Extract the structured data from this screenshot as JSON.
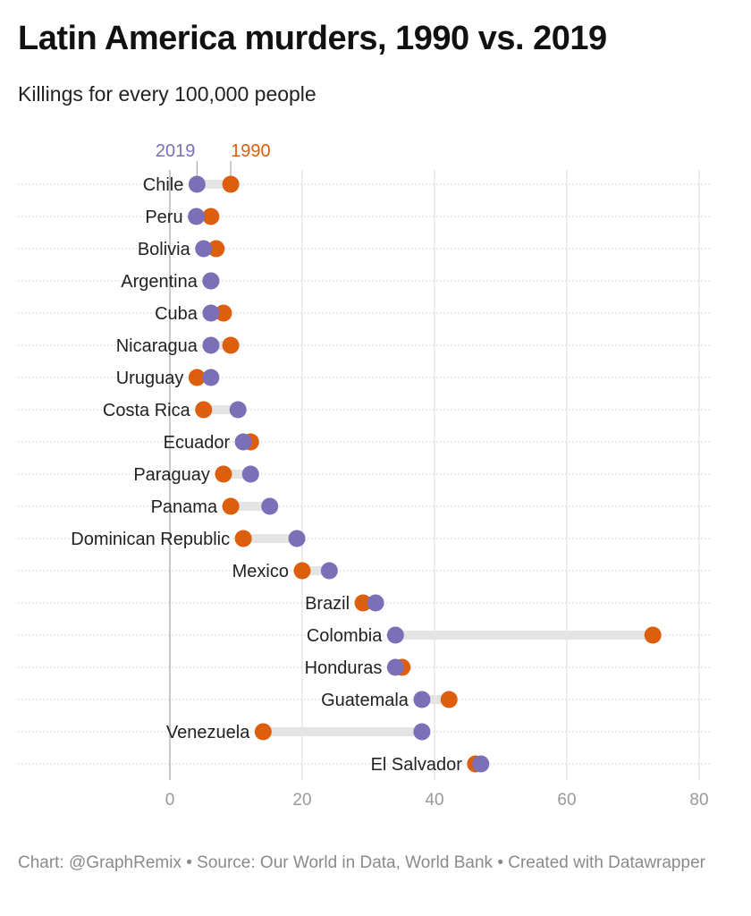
{
  "title": "Latin America murders, 1990 vs. 2019",
  "subtitle": "Killings for every 100,000 people",
  "notes": "Chart: @GraphRemix • Source: Our World in Data, World Bank • Created with Datawrapper",
  "chart_data": {
    "type": "dot-range",
    "xlim": [
      0,
      80
    ],
    "xticks": [
      "0",
      "20",
      "40",
      "60",
      "80"
    ],
    "grid": true,
    "legend_placement": "top, inline above first row",
    "series": [
      {
        "name": "2019",
        "color": "#7b6fb8"
      },
      {
        "name": "1990",
        "color": "#dd5e0c"
      }
    ],
    "categories": [
      "Chile",
      "Peru",
      "Bolivia",
      "Argentina",
      "Cuba",
      "Nicaragua",
      "Uruguay",
      "Costa Rica",
      "Ecuador",
      "Paraguay",
      "Panama",
      "Dominican Republic",
      "Mexico",
      "Brazil",
      "Colombia",
      "Honduras",
      "Guatemala",
      "Venezuela",
      "El Salvador"
    ],
    "values_1990": [
      9.2,
      6.2,
      7.0,
      6.2,
      8.1,
      9.2,
      4.1,
      5.1,
      12.2,
      8.1,
      9.2,
      11.1,
      20.0,
      29.2,
      73.0,
      35.1,
      42.2,
      14.1,
      46.2
    ],
    "values_2019": [
      4.1,
      4.0,
      5.1,
      6.2,
      6.2,
      6.2,
      6.2,
      10.3,
      11.1,
      12.2,
      15.1,
      19.2,
      24.1,
      31.1,
      34.1,
      34.1,
      38.1,
      38.1,
      47.0
    ]
  }
}
